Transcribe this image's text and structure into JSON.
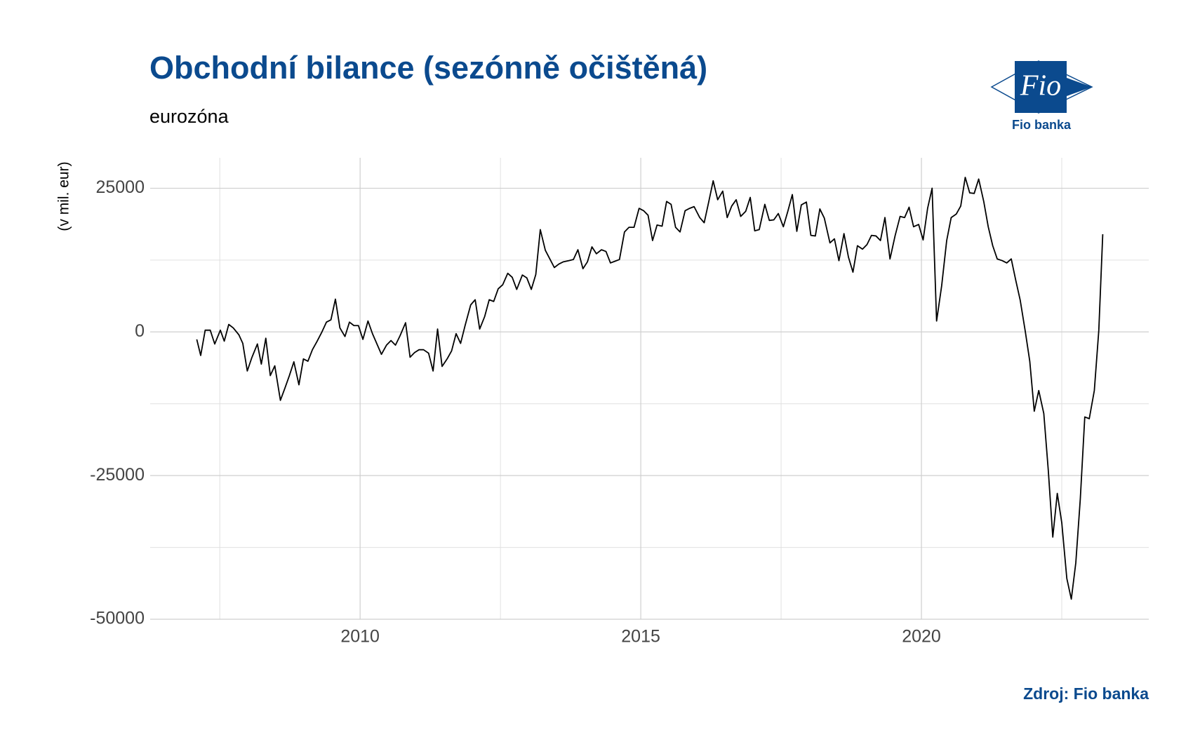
{
  "chart_data": {
    "type": "line",
    "title": "Obchodní bilance (sezónně očištěná)",
    "subtitle": "eurozóna",
    "y_label": "(v mil. eur)",
    "source": "Zdroj: Fio banka",
    "logo": {
      "text": "Fio",
      "caption": "Fio banka"
    },
    "xlim": [
      2006.26,
      2024.05
    ],
    "xticks": [
      2010,
      2015,
      2020
    ],
    "minor_xticks": [
      2007.5,
      2012.5,
      2017.5,
      2022.5
    ],
    "ylim": [
      -50000,
      30300
    ],
    "yticks": [
      -50000,
      -25000,
      0,
      25000
    ],
    "minor_yticks": [
      -37500,
      -12500,
      12500
    ],
    "grid": true,
    "color": "#000000",
    "x": [
      2007.09,
      2007.16,
      2007.24,
      2007.33,
      2007.41,
      2007.51,
      2007.58,
      2007.66,
      2007.74,
      2007.84,
      2007.91,
      2007.99,
      2008.07,
      2008.17,
      2008.24,
      2008.32,
      2008.4,
      2008.48,
      2008.58,
      2008.66,
      2008.74,
      2008.82,
      2008.91,
      2008.99,
      2009.07,
      2009.15,
      2009.23,
      2009.32,
      2009.4,
      2009.48,
      2009.56,
      2009.64,
      2009.73,
      2009.81,
      2009.89,
      2009.97,
      2010.05,
      2010.14,
      2010.22,
      2010.3,
      2010.38,
      2010.47,
      2010.55,
      2010.63,
      2010.71,
      2010.81,
      2010.89,
      2010.97,
      2011.05,
      2011.13,
      2011.22,
      2011.3,
      2011.38,
      2011.46,
      2011.55,
      2011.63,
      2011.71,
      2011.79,
      2011.87,
      2011.97,
      2012.05,
      2012.13,
      2012.22,
      2012.3,
      2012.38,
      2012.46,
      2012.54,
      2012.63,
      2012.71,
      2012.79,
      2012.89,
      2012.97,
      2013.05,
      2013.13,
      2013.21,
      2013.3,
      2013.38,
      2013.46,
      2013.54,
      2013.62,
      2013.72,
      2013.8,
      2013.88,
      2013.97,
      2014.05,
      2014.13,
      2014.21,
      2014.3,
      2014.38,
      2014.46,
      2014.54,
      2014.62,
      2014.71,
      2014.79,
      2014.88,
      2014.97,
      2015.05,
      2015.13,
      2015.21,
      2015.29,
      2015.38,
      2015.46,
      2015.54,
      2015.62,
      2015.7,
      2015.79,
      2015.87,
      2015.95,
      2016.05,
      2016.13,
      2016.21,
      2016.29,
      2016.37,
      2016.46,
      2016.54,
      2016.62,
      2016.7,
      2016.78,
      2016.87,
      2016.95,
      2017.03,
      2017.11,
      2017.21,
      2017.29,
      2017.37,
      2017.45,
      2017.54,
      2017.62,
      2017.7,
      2017.78,
      2017.86,
      2017.95,
      2018.03,
      2018.11,
      2018.19,
      2018.27,
      2018.37,
      2018.45,
      2018.53,
      2018.62,
      2018.7,
      2018.78,
      2018.86,
      2018.95,
      2019.03,
      2019.11,
      2019.19,
      2019.27,
      2019.35,
      2019.44,
      2019.53,
      2019.62,
      2019.7,
      2019.78,
      2019.86,
      2019.95,
      2020.03,
      2020.11,
      2020.19,
      2020.27,
      2020.36,
      2020.45,
      2020.53,
      2020.62,
      2020.7,
      2020.78,
      2020.86,
      2020.94,
      2021.02,
      2021.11,
      2021.19,
      2021.27,
      2021.35,
      2021.44,
      2021.52,
      2021.6,
      2021.68,
      2021.76,
      2021.85,
      2021.93,
      2022.01,
      2022.09,
      2022.18,
      2022.26,
      2022.34,
      2022.42,
      2022.5,
      2022.59,
      2022.67,
      2022.75,
      2022.83,
      2022.91,
      2022.99,
      2023.08,
      2023.16,
      2023.23
    ],
    "values": [
      -1300,
      -4100,
      300,
      300,
      -2100,
      300,
      -1600,
      1300,
      700,
      -500,
      -2000,
      -6800,
      -4500,
      -2100,
      -5600,
      -1100,
      -7600,
      -5900,
      -11900,
      -9800,
      -7600,
      -5200,
      -9200,
      -4700,
      -5100,
      -3100,
      -1700,
      0,
      1700,
      2100,
      5700,
      700,
      -800,
      1700,
      1100,
      1100,
      -1300,
      1900,
      -300,
      -2100,
      -3900,
      -2300,
      -1500,
      -2300,
      -700,
      1600,
      -4400,
      -3600,
      -3100,
      -3100,
      -3700,
      -6800,
      500,
      -6000,
      -4700,
      -3300,
      -300,
      -2000,
      1100,
      4700,
      5600,
      500,
      2700,
      5600,
      5300,
      7500,
      8200,
      10200,
      9500,
      7400,
      9900,
      9400,
      7400,
      10000,
      17800,
      14200,
      12700,
      11200,
      11800,
      12200,
      12400,
      12600,
      14300,
      11000,
      12200,
      14800,
      13600,
      14300,
      14000,
      12000,
      12300,
      12600,
      17400,
      18200,
      18200,
      21500,
      21100,
      20300,
      15900,
      18600,
      18400,
      22700,
      22200,
      18200,
      17400,
      21100,
      21500,
      21800,
      19900,
      19000,
      22600,
      26300,
      23000,
      24500,
      19900,
      21900,
      23000,
      20100,
      21000,
      23400,
      17600,
      17800,
      22200,
      19400,
      19500,
      20600,
      18300,
      21000,
      23900,
      17500,
      22100,
      22600,
      16800,
      16700,
      21400,
      19800,
      15500,
      16200,
      12400,
      17100,
      13000,
      10400,
      15000,
      14400,
      15200,
      16800,
      16700,
      15900,
      19900,
      12700,
      16700,
      20100,
      19900,
      21700,
      18300,
      18700,
      16000,
      21500,
      25000,
      1900,
      8000,
      15900,
      19900,
      20500,
      21900,
      26900,
      24200,
      24100,
      26600,
      22700,
      18300,
      15000,
      12700,
      12400,
      12000,
      12700,
      9000,
      5500,
      100,
      -5100,
      -13800,
      -10200,
      -14200,
      -24100,
      -35700,
      -28100,
      -33200,
      -42900,
      -46500,
      -40200,
      -29100,
      -14800,
      -15100,
      -10200,
      300,
      17000
    ]
  }
}
